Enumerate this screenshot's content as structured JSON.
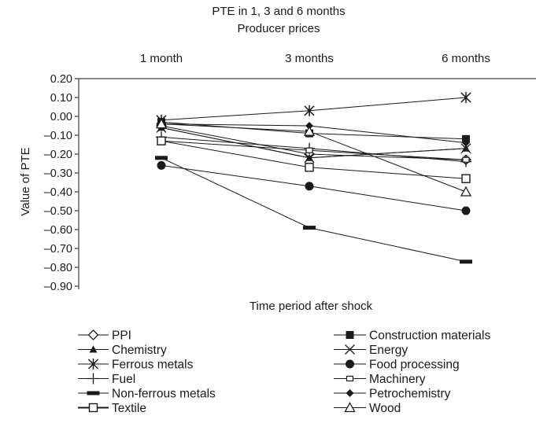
{
  "chart_data": {
    "type": "line",
    "title": "PTE in 1, 3 and 6 months",
    "subtitle": "Producer prices",
    "xlabel": "Time period after shock",
    "ylabel": "Value of PTE",
    "categories": [
      "1 month",
      "3 months",
      "6 months"
    ],
    "ylim": [
      -0.9,
      0.2
    ],
    "yticks": [
      "0.20",
      "0.10",
      "0.00",
      "–0.10",
      "–0.20",
      "–0.30",
      "–0.40",
      "–0.50",
      "–0.60",
      "–0.70",
      "–0.80",
      "–0.90"
    ],
    "grid": false,
    "legend_position": "bottom",
    "series": [
      {
        "name": "PPI",
        "marker": "diamond-open",
        "values": [
          -0.05,
          -0.2,
          -0.23
        ]
      },
      {
        "name": "Construction materials",
        "marker": "square-filled",
        "values": [
          -0.03,
          -0.09,
          -0.12
        ]
      },
      {
        "name": "Chemistry",
        "marker": "triangle-filled",
        "values": [
          -0.06,
          -0.22,
          -0.17
        ]
      },
      {
        "name": "Energy",
        "marker": "x",
        "values": [
          -0.06,
          -0.22,
          -0.17
        ]
      },
      {
        "name": "Ferrous metals",
        "marker": "asterisk",
        "values": [
          -0.02,
          0.03,
          0.1
        ]
      },
      {
        "name": "Food processing",
        "marker": "circle-filled",
        "values": [
          -0.26,
          -0.37,
          -0.5
        ]
      },
      {
        "name": "Fuel",
        "marker": "plus",
        "values": [
          -0.11,
          -0.17,
          -0.24
        ]
      },
      {
        "name": "Machinery",
        "marker": "small-square-open",
        "values": [
          -0.13,
          -0.18,
          -0.23
        ]
      },
      {
        "name": "Non-ferrous metals",
        "marker": "dash",
        "values": [
          -0.22,
          -0.59,
          -0.77
        ]
      },
      {
        "name": "Petrochemistry",
        "marker": "diamond-small-filled",
        "values": [
          -0.04,
          -0.05,
          -0.14
        ]
      },
      {
        "name": "Textile",
        "marker": "square-open",
        "values": [
          -0.13,
          -0.27,
          -0.33
        ]
      },
      {
        "name": "Wood",
        "marker": "triangle-open",
        "values": [
          -0.04,
          -0.08,
          -0.4
        ]
      }
    ]
  }
}
